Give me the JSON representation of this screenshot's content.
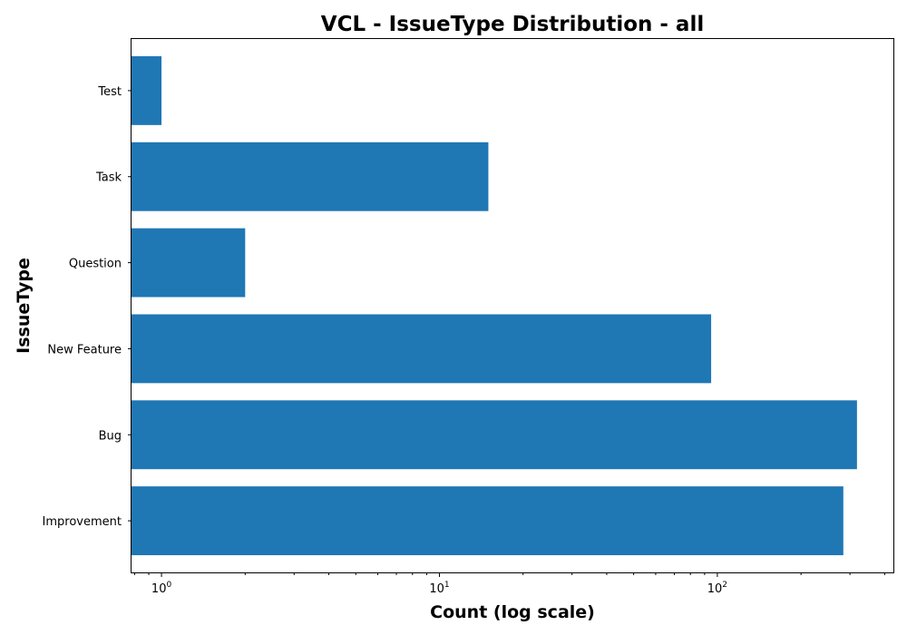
{
  "chart_data": {
    "type": "bar",
    "orientation": "horizontal",
    "title": "VCL - IssueType Distribution - all",
    "xlabel": "Count (log scale)",
    "ylabel": "IssueType",
    "xscale": "log",
    "xlim": [
      0.78,
      430
    ],
    "categories": [
      "Improvement",
      "Bug",
      "New Feature",
      "Question",
      "Task",
      "Test"
    ],
    "values": [
      284,
      318,
      95,
      2,
      15,
      1
    ],
    "x_major_ticks": [
      {
        "base": "10",
        "exp": "0",
        "value": 1
      },
      {
        "base": "10",
        "exp": "1",
        "value": 10
      },
      {
        "base": "10",
        "exp": "2",
        "value": 100
      }
    ],
    "bar_color": "#1f77b4",
    "grid": false,
    "legend": "none"
  }
}
